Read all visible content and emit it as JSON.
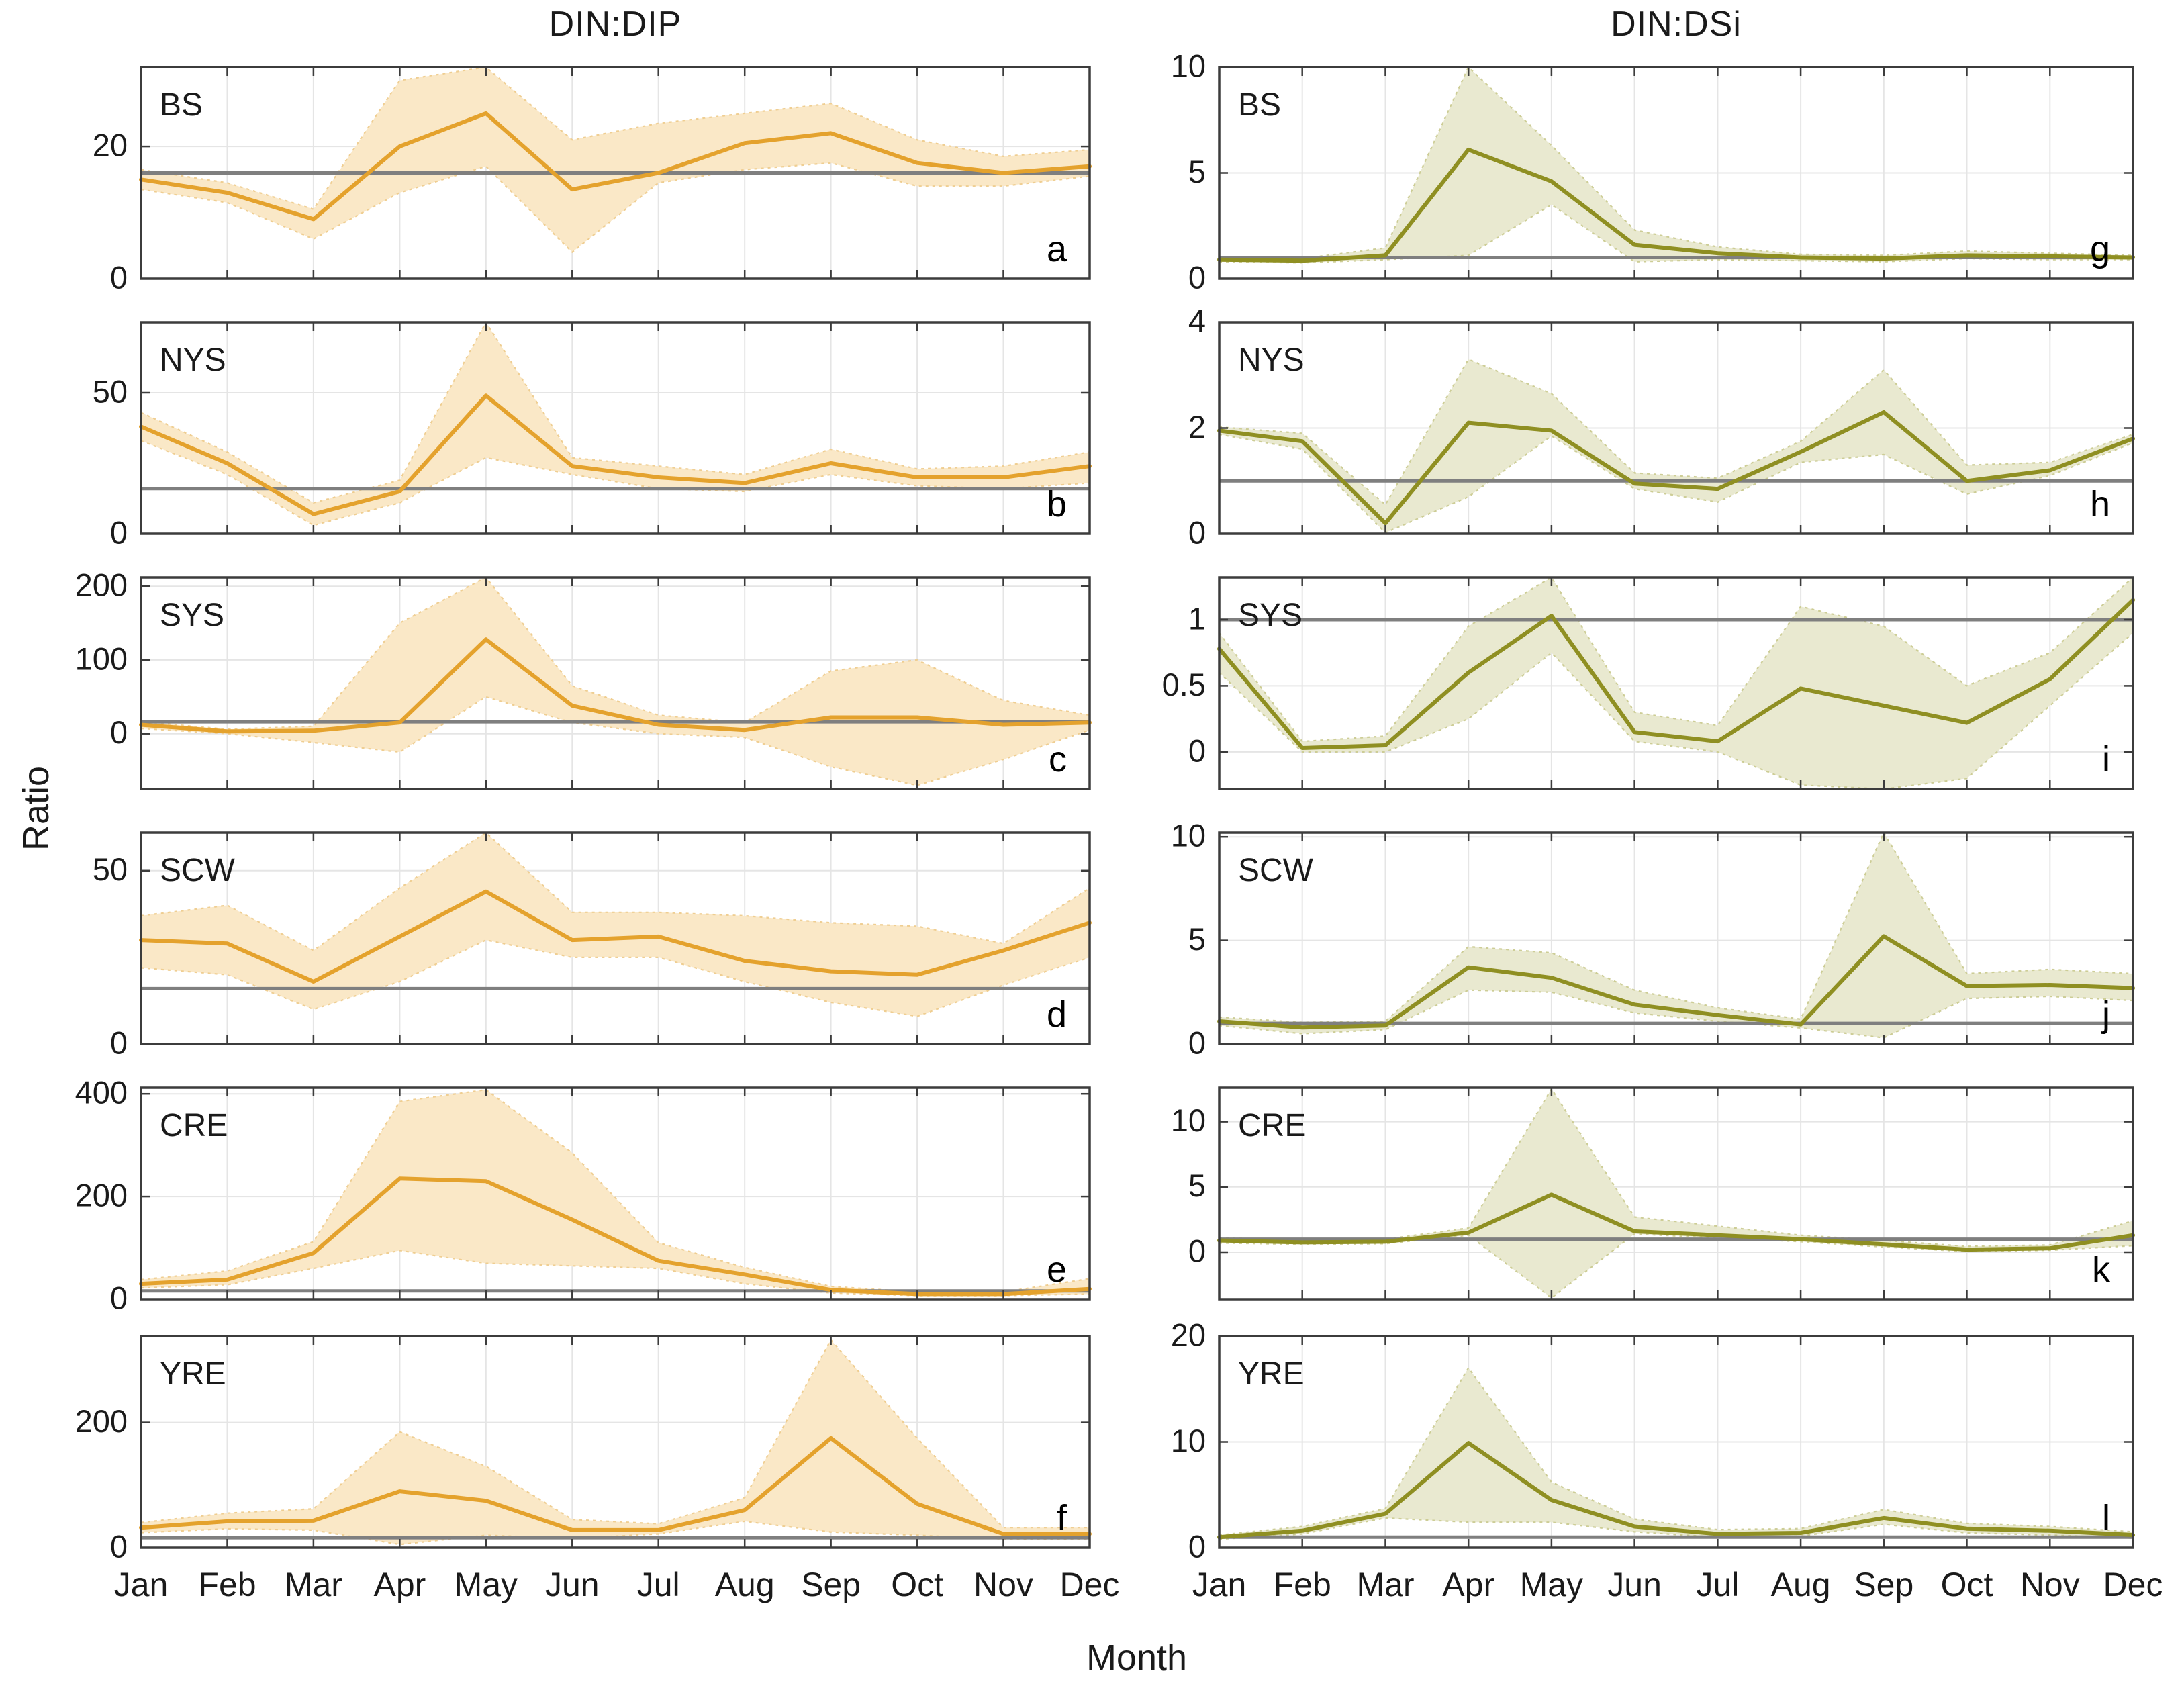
{
  "figure": {
    "ylabel": "Ratio",
    "xlabel": "Month"
  },
  "colors": {
    "din_dip_line": "#E4A22D",
    "din_dip_band": "#FAE8C7",
    "din_dip_band_edge": "#EFCE92",
    "din_dsi_line": "#8F8F22",
    "din_dsi_band": "#E9E9D0",
    "din_dsi_band_edge": "#CDCD96",
    "reference_line": "#7F7F7F",
    "grid_line": "#E5E5E5",
    "frame": "#3C3C3C",
    "text": "#1A1A1A"
  },
  "chart_data": {
    "type": "line",
    "months": [
      "Jan",
      "Feb",
      "Mar",
      "Apr",
      "May",
      "Jun",
      "Jul",
      "Aug",
      "Sep",
      "Oct",
      "Nov",
      "Dec"
    ],
    "xlabel": "Month",
    "ylabel": "Ratio",
    "columns": [
      "DIN:DIP",
      "DIN:DSi"
    ],
    "grid": true,
    "band_note_visible_in_pixels_only": "",
    "panels": [
      {
        "id": "a",
        "region": "BS",
        "column": "DIN:DIP",
        "row": 0,
        "col": 0,
        "ylim": [
          0,
          32
        ],
        "yticks": [
          0,
          20
        ],
        "ref": 16,
        "mean": [
          15,
          13,
          9,
          20,
          25,
          13.5,
          16,
          20.5,
          22,
          17.5,
          16,
          17
        ],
        "lo": [
          13.5,
          11.5,
          6,
          13,
          17,
          4,
          14.5,
          16.5,
          17.5,
          14,
          14,
          15.5
        ],
        "hi": [
          16.5,
          14.5,
          10.5,
          30,
          33,
          21,
          23.5,
          25,
          26.5,
          21,
          18.5,
          19.5
        ]
      },
      {
        "id": "b",
        "region": "NYS",
        "column": "DIN:DIP",
        "row": 1,
        "col": 0,
        "ylim": [
          0,
          75
        ],
        "yticks": [
          0,
          50
        ],
        "ref": 16,
        "mean": [
          38,
          25,
          7,
          15,
          49,
          24,
          20,
          18,
          25,
          20,
          20,
          24
        ],
        "lo": [
          33,
          21,
          3,
          11,
          27,
          21,
          16,
          15,
          21,
          17,
          16,
          18
        ],
        "hi": [
          43,
          29,
          11,
          19,
          76,
          27,
          24,
          21,
          30,
          23,
          24,
          29
        ]
      },
      {
        "id": "c",
        "region": "SYS",
        "column": "DIN:DIP",
        "row": 2,
        "col": 0,
        "ylim": [
          -75,
          212
        ],
        "yticks": [
          0,
          100,
          200
        ],
        "ref": 16,
        "mean": [
          12,
          3,
          4,
          15,
          128,
          38,
          12,
          5,
          22,
          22,
          12,
          15
        ],
        "lo": [
          7,
          0,
          -12,
          -25,
          50,
          15,
          0,
          -5,
          -45,
          -70,
          -35,
          5
        ],
        "hi": [
          16,
          6,
          10,
          150,
          213,
          65,
          25,
          15,
          85,
          100,
          45,
          25
        ]
      },
      {
        "id": "d",
        "region": "SCW",
        "column": "DIN:DIP",
        "row": 3,
        "col": 0,
        "ylim": [
          0,
          61
        ],
        "yticks": [
          0,
          50
        ],
        "ref": 16,
        "mean": [
          30,
          29,
          18,
          31,
          44,
          30,
          31,
          24,
          21,
          20,
          27,
          35
        ],
        "lo": [
          22,
          20,
          10,
          18,
          30,
          25,
          25,
          18,
          12,
          8,
          17,
          25
        ],
        "hi": [
          37,
          40,
          27,
          45,
          61,
          38,
          38,
          37,
          35,
          34,
          29,
          45
        ]
      },
      {
        "id": "e",
        "region": "CRE",
        "column": "DIN:DIP",
        "row": 4,
        "col": 0,
        "ylim": [
          0,
          412
        ],
        "yticks": [
          0,
          200,
          400
        ],
        "ref": 16,
        "mean": [
          30,
          38,
          90,
          235,
          230,
          155,
          75,
          48,
          18,
          10,
          10,
          20
        ],
        "lo": [
          22,
          28,
          60,
          95,
          70,
          65,
          60,
          30,
          12,
          7,
          7,
          10
        ],
        "hi": [
          38,
          55,
          112,
          385,
          408,
          285,
          110,
          62,
          25,
          14,
          14,
          40
        ]
      },
      {
        "id": "f",
        "region": "YRE",
        "column": "DIN:DIP",
        "row": 5,
        "col": 0,
        "ylim": [
          0,
          338
        ],
        "yticks": [
          0,
          200
        ],
        "ref": 16,
        "mean": [
          32,
          42,
          43,
          90,
          75,
          28,
          28,
          60,
          175,
          70,
          22,
          22
        ],
        "lo": [
          24,
          30,
          28,
          5,
          20,
          15,
          22,
          42,
          25,
          20,
          14,
          14
        ],
        "hi": [
          40,
          55,
          62,
          185,
          130,
          45,
          38,
          80,
          332,
          175,
          32,
          32
        ]
      },
      {
        "id": "g",
        "region": "BS",
        "column": "DIN:DSi",
        "row": 0,
        "col": 1,
        "ylim": [
          0,
          10
        ],
        "yticks": [
          0,
          5,
          10
        ],
        "ref": 1,
        "mean": [
          0.9,
          0.85,
          1.1,
          6.1,
          4.6,
          1.6,
          1.2,
          1.0,
          0.95,
          1.1,
          1.05,
          1.0
        ],
        "lo": [
          0.8,
          0.75,
          0.9,
          1.1,
          3.5,
          0.8,
          0.9,
          0.85,
          0.8,
          0.95,
          0.9,
          0.9
        ],
        "hi": [
          1.0,
          0.95,
          1.45,
          10.1,
          6.3,
          2.3,
          1.5,
          1.15,
          1.1,
          1.3,
          1.2,
          1.1
        ]
      },
      {
        "id": "h",
        "region": "NYS",
        "column": "DIN:DSi",
        "row": 1,
        "col": 1,
        "ylim": [
          0,
          4
        ],
        "yticks": [
          0,
          2,
          4
        ],
        "ref": 1,
        "mean": [
          1.95,
          1.75,
          0.2,
          2.1,
          1.95,
          0.95,
          0.85,
          1.55,
          2.3,
          1.0,
          1.2,
          1.8
        ],
        "lo": [
          1.88,
          1.6,
          0.02,
          0.7,
          1.85,
          0.85,
          0.6,
          1.35,
          1.5,
          0.75,
          1.1,
          1.72
        ],
        "hi": [
          2.02,
          1.9,
          0.55,
          3.3,
          2.65,
          1.15,
          1.05,
          1.75,
          3.1,
          1.3,
          1.35,
          1.88
        ]
      },
      {
        "id": "i",
        "region": "SYS",
        "column": "DIN:DSi",
        "row": 2,
        "col": 1,
        "ylim": [
          -0.28,
          1.32
        ],
        "yticks": [
          0,
          0.5,
          1
        ],
        "ref": 1,
        "mean": [
          0.78,
          0.03,
          0.05,
          0.6,
          1.03,
          0.15,
          0.08,
          0.48,
          0.35,
          0.22,
          0.55,
          1.15
        ],
        "lo": [
          0.6,
          0,
          0,
          0.25,
          0.75,
          0.08,
          0,
          -0.25,
          -0.29,
          -0.2,
          0.35,
          0.9
        ],
        "hi": [
          0.9,
          0.08,
          0.12,
          0.95,
          1.33,
          0.3,
          0.2,
          1.1,
          0.95,
          0.5,
          0.75,
          1.33
        ]
      },
      {
        "id": "j",
        "region": "SCW",
        "column": "DIN:DSi",
        "row": 3,
        "col": 1,
        "ylim": [
          0,
          10.2
        ],
        "yticks": [
          0,
          5,
          10
        ],
        "ref": 1,
        "mean": [
          1.1,
          0.8,
          0.9,
          3.7,
          3.2,
          1.9,
          1.4,
          0.95,
          5.2,
          2.8,
          2.85,
          2.7
        ],
        "lo": [
          0.9,
          0.5,
          0.7,
          2.6,
          2.5,
          1.5,
          1.1,
          0.78,
          0.3,
          2.2,
          2.3,
          2.1
        ],
        "hi": [
          1.3,
          1.05,
          1.1,
          4.7,
          4.4,
          2.6,
          1.75,
          1.2,
          10.3,
          3.4,
          3.6,
          3.4
        ]
      },
      {
        "id": "k",
        "region": "CRE",
        "column": "DIN:DSi",
        "row": 4,
        "col": 1,
        "ylim": [
          -3.6,
          12.6
        ],
        "yticks": [
          0,
          5,
          10
        ],
        "ref": 1,
        "mean": [
          0.9,
          0.75,
          0.8,
          1.5,
          4.4,
          1.6,
          1.3,
          1.0,
          0.6,
          0.2,
          0.3,
          1.3
        ],
        "lo": [
          0.7,
          0.6,
          0.65,
          1.3,
          -3.5,
          1.4,
          1.1,
          0.8,
          0.4,
          0.05,
          0.15,
          0.5
        ],
        "hi": [
          1.1,
          0.95,
          1.0,
          1.85,
          12.5,
          2.7,
          2.0,
          1.3,
          0.9,
          0.45,
          0.55,
          2.4
        ]
      },
      {
        "id": "l",
        "region": "YRE",
        "column": "DIN:DSi",
        "row": 5,
        "col": 1,
        "ylim": [
          0,
          20
        ],
        "yticks": [
          0,
          10,
          20
        ],
        "ref": 1,
        "mean": [
          1.0,
          1.6,
          3.2,
          9.9,
          4.5,
          2.0,
          1.3,
          1.4,
          2.8,
          1.8,
          1.6,
          1.2
        ],
        "lo": [
          0.8,
          1.3,
          2.8,
          2.4,
          2.4,
          1.5,
          1.0,
          1.1,
          2.2,
          1.4,
          1.2,
          0.9
        ],
        "hi": [
          1.2,
          2.0,
          3.7,
          17,
          6.2,
          2.7,
          1.7,
          1.8,
          3.6,
          2.3,
          2.0,
          1.5
        ]
      }
    ]
  }
}
